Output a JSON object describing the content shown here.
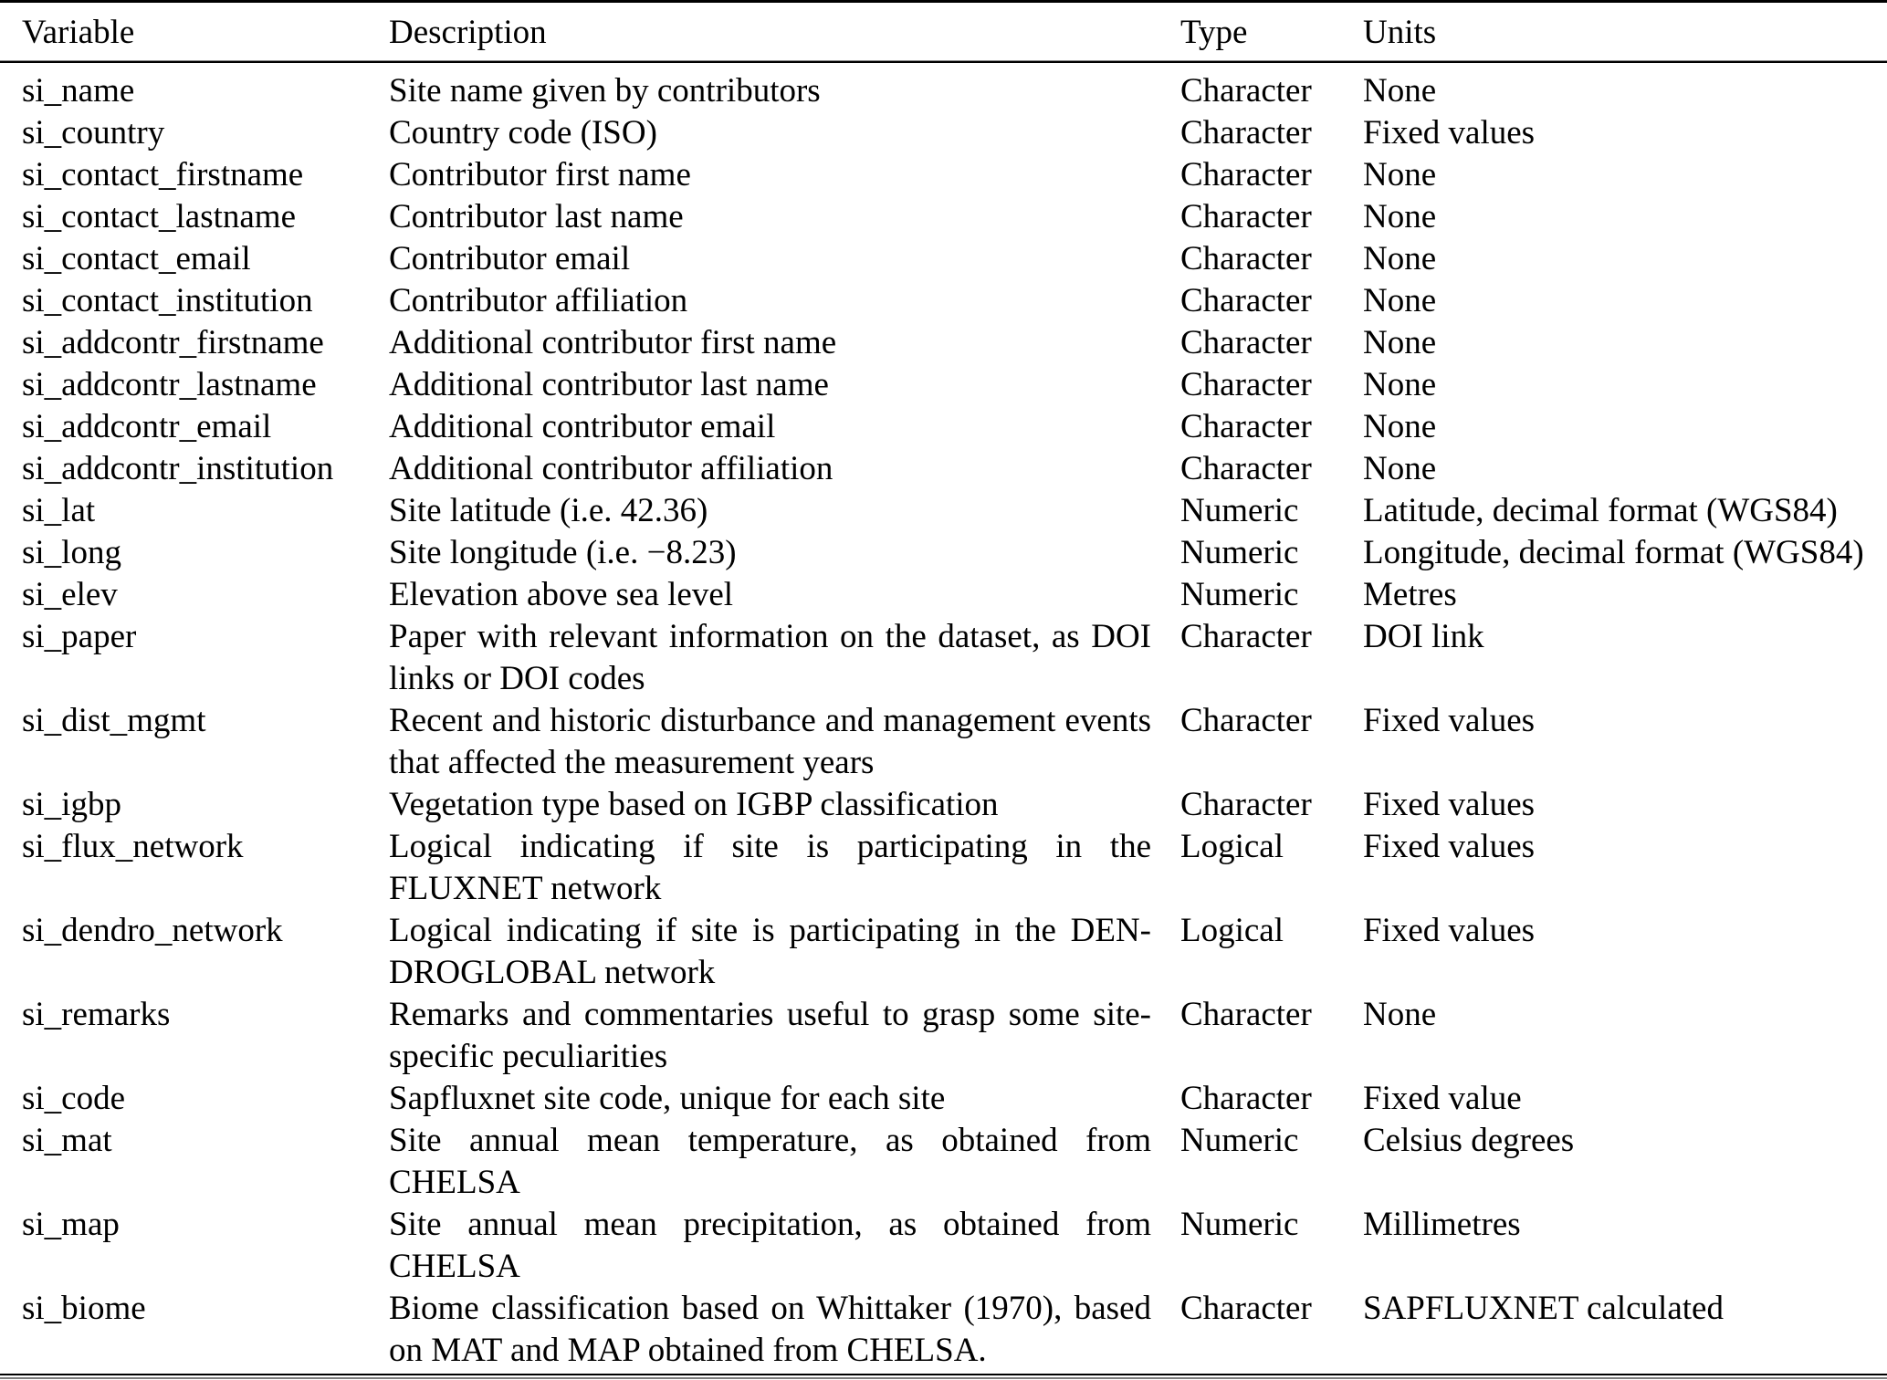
{
  "table": {
    "headers": {
      "variable": "Variable",
      "description": "Description",
      "type": "Type",
      "units": "Units"
    },
    "rows": [
      {
        "variable": "si_name",
        "description": "Site name given by contributors",
        "type": "Character",
        "units": "None"
      },
      {
        "variable": "si_country",
        "description": "Country code (ISO)",
        "type": "Character",
        "units": "Fixed values"
      },
      {
        "variable": "si_contact_firstname",
        "description": "Contributor first name",
        "type": "Character",
        "units": "None"
      },
      {
        "variable": "si_contact_lastname",
        "description": "Contributor last name",
        "type": "Character",
        "units": "None"
      },
      {
        "variable": "si_contact_email",
        "description": "Contributor email",
        "type": "Character",
        "units": "None"
      },
      {
        "variable": "si_contact_institution",
        "description": "Contributor affiliation",
        "type": "Character",
        "units": "None"
      },
      {
        "variable": "si_addcontr_firstname",
        "description": "Additional contributor first name",
        "type": "Character",
        "units": "None"
      },
      {
        "variable": "si_addcontr_lastname",
        "description": "Additional contributor last name",
        "type": "Character",
        "units": "None"
      },
      {
        "variable": "si_addcontr_email",
        "description": "Additional contributor email",
        "type": "Character",
        "units": "None"
      },
      {
        "variable": "si_addcontr_institution",
        "description": "Additional contributor affiliation",
        "type": "Character",
        "units": "None"
      },
      {
        "variable": "si_lat",
        "description": "Site latitude (i.e. 42.36)",
        "type": "Numeric",
        "units": "Latitude, decimal format (WGS84)"
      },
      {
        "variable": "si_long",
        "description": "Site longitude (i.e. −8.23)",
        "type": "Numeric",
        "units": "Longitude, decimal format (WGS84)"
      },
      {
        "variable": "si_elev",
        "description": "Elevation above sea level",
        "type": "Numeric",
        "units": "Metres"
      },
      {
        "variable": "si_paper",
        "description": "Paper with relevant information on the dataset, as DOI links or DOI codes",
        "type": "Character",
        "units": "DOI link"
      },
      {
        "variable": "si_dist_mgmt",
        "description": "Recent and historic disturbance and management events that affected the measurement years",
        "type": "Character",
        "units": "Fixed values"
      },
      {
        "variable": "si_igbp",
        "description": "Vegetation type based on IGBP classification",
        "type": "Character",
        "units": "Fixed values"
      },
      {
        "variable": "si_flux_network",
        "description": "Logical indicating if site is participating in the FLUXNET network",
        "type": "Logical",
        "units": "Fixed values"
      },
      {
        "variable": "si_dendro_network",
        "description": "Logical indicating if site is participating in the DEN­DROGLOBAL network",
        "type": "Logical",
        "units": "Fixed values"
      },
      {
        "variable": "si_remarks",
        "description": "Remarks and commentaries useful to grasp some site-specific peculiarities",
        "type": "Character",
        "units": "None"
      },
      {
        "variable": "si_code",
        "description": "Sapfluxnet site code, unique for each site",
        "type": "Character",
        "units": "Fixed value"
      },
      {
        "variable": "si_mat",
        "description": "Site annual mean temperature, as obtained from CHELSA",
        "type": "Numeric",
        "units": "Celsius degrees"
      },
      {
        "variable": "si_map",
        "description": "Site annual mean precipitation, as obtained from CHELSA",
        "type": "Numeric",
        "units": "Millimetres"
      },
      {
        "variable": "si_biome",
        "description": "Biome classification based on Whittaker (1970), based on MAT and MAP obtained from CHELSA.",
        "type": "Character",
        "units": "SAPFLUXNET calculated"
      }
    ]
  }
}
